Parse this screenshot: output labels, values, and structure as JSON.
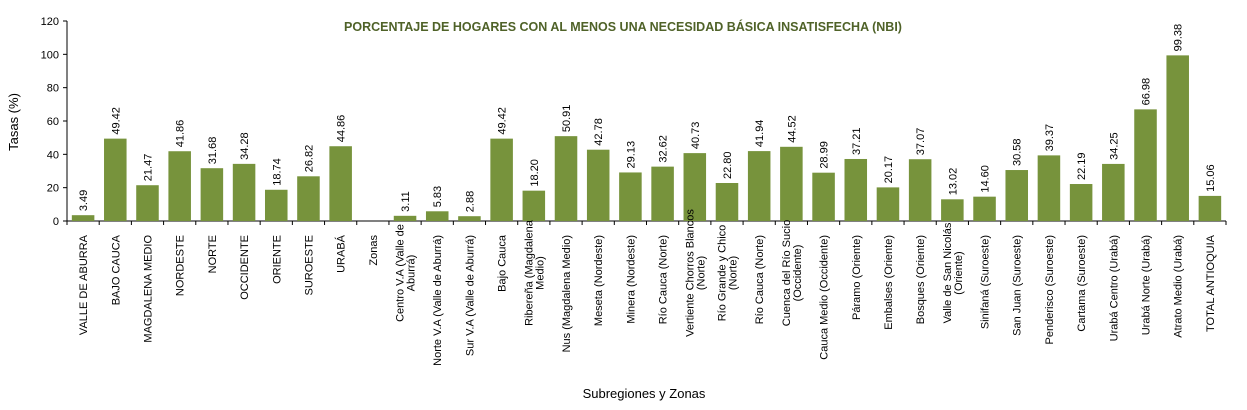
{
  "colors": {
    "bar": "#77933c",
    "axis": "#000000",
    "title": "#4f6228"
  },
  "chart_data": {
    "type": "bar",
    "title": "PORCENTAJE DE HOGARES CON AL MENOS UNA NECESIDAD BÁSICA INSATISFECHA (NBI)",
    "xlabel": "Subregiones y Zonas",
    "ylabel": "Tasas (%)",
    "ylim": [
      0,
      120
    ],
    "yticks": [
      0,
      20,
      40,
      60,
      80,
      100,
      120
    ],
    "grid": false,
    "legend": "none",
    "categories": [
      "VALLE DE ABURRA",
      "BAJO CAUCA",
      "MAGDALENA MEDIO",
      "NORDESTE",
      "NORTE",
      "OCCIDENTE",
      "ORIENTE",
      "SUROESTE",
      "URABÁ",
      "Zonas",
      "Centro V.A (Valle de Aburrá)",
      "Norte V.A (Valle de Aburrá)",
      "Sur V.A (Valle de Aburrá)",
      "Bajo Cauca",
      "Ribereña (Magdalena Medio)",
      "Nus (Magdalena Medio)",
      "Meseta (Nordeste)",
      "Minera (Nordeste)",
      "Río Cauca (Norte)",
      "Vertiente Chorros Blancos (Norte)",
      "Río Grande y Chico (Norte)",
      "Río Cauca (Norte)",
      "Cuenca del Río Sucio (Occidente)",
      "Cauca Medio (Occidente)",
      "Páramo (Oriente)",
      "Embalses (Oriente)",
      "Bosques (Oriente)",
      "Valle de San Nicolás (Oriente)",
      "Sinifaná (Suroeste)",
      "San Juan (Suroeste)",
      "Penderisco (Suroeste)",
      "Cartama (Suroeste)",
      "Urabá Centro (Urabá)",
      "Urabá Norte (Urabá)",
      "Atrato Medio (Urabá)",
      "TOTAL ANTIOQUIA"
    ],
    "category_lines": [
      [
        "VALLE DE ABURRA"
      ],
      [
        "BAJO CAUCA"
      ],
      [
        "MAGDALENA MEDIO"
      ],
      [
        "NORDESTE"
      ],
      [
        "NORTE"
      ],
      [
        "OCCIDENTE"
      ],
      [
        "ORIENTE"
      ],
      [
        "SUROESTE"
      ],
      [
        "URABÁ"
      ],
      [
        "Zonas"
      ],
      [
        "Centro V.A (Valle de",
        "Aburrá)"
      ],
      [
        "Norte V.A (Valle de Aburrá)"
      ],
      [
        "Sur V.A (Valle de Aburrá)"
      ],
      [
        "Bajo Cauca"
      ],
      [
        "Ribereña  (Magdalena",
        "Medio)"
      ],
      [
        "Nus  (Magdalena Medio)"
      ],
      [
        "Meseta  (Nordeste)"
      ],
      [
        "Minera  (Nordeste)"
      ],
      [
        "Río Cauca  (Norte)"
      ],
      [
        "Vertiente Chorros Blancos",
        "(Norte)"
      ],
      [
        "Río Grande y Chico",
        "(Norte)"
      ],
      [
        "Río Cauca (Norte)"
      ],
      [
        "Cuenca del Río Sucio",
        "(Occidente)"
      ],
      [
        "Cauca Medio  (Occidente)"
      ],
      [
        "Páramo  (Oriente)"
      ],
      [
        "Embalses  (Oriente)"
      ],
      [
        "Bosques  (Oriente)"
      ],
      [
        "Valle de San Nicolás",
        "(Oriente)"
      ],
      [
        "Sinifaná  (Suroeste)"
      ],
      [
        "San Juan  (Suroeste)"
      ],
      [
        "Penderisco  (Suroeste)"
      ],
      [
        "Cartama  (Suroeste)"
      ],
      [
        "Urabá Centro  (Urabá)"
      ],
      [
        "Urabá Norte  (Urabá)"
      ],
      [
        "Atrato Medio  (Urabá)"
      ],
      [
        "TOTAL ANTIOQUIA"
      ]
    ],
    "values": [
      3.49,
      49.42,
      21.47,
      41.86,
      31.68,
      34.28,
      18.74,
      26.82,
      44.86,
      null,
      3.11,
      5.83,
      2.88,
      49.42,
      18.2,
      50.91,
      42.78,
      29.13,
      32.62,
      40.73,
      22.8,
      41.94,
      44.52,
      28.99,
      37.21,
      20.17,
      37.07,
      13.02,
      14.6,
      30.58,
      39.37,
      22.19,
      34.25,
      66.98,
      99.38,
      15.06
    ],
    "value_labels": [
      "3.49",
      "49.42",
      "21.47",
      "41.86",
      "31.68",
      "34.28",
      "18.74",
      "26.82",
      "44.86",
      "",
      "3.11",
      "5.83",
      "2.88",
      "49.42",
      "18.20",
      "50.91",
      "42.78",
      "29.13",
      "32.62",
      "40.73",
      "22.80",
      "41.94",
      "44.52",
      "28.99",
      "37.21",
      "20.17",
      "37.07",
      "13.02",
      "14.60",
      "30.58",
      "39.37",
      "22.19",
      "34.25",
      "66.98",
      "99.38",
      "15.06"
    ]
  }
}
